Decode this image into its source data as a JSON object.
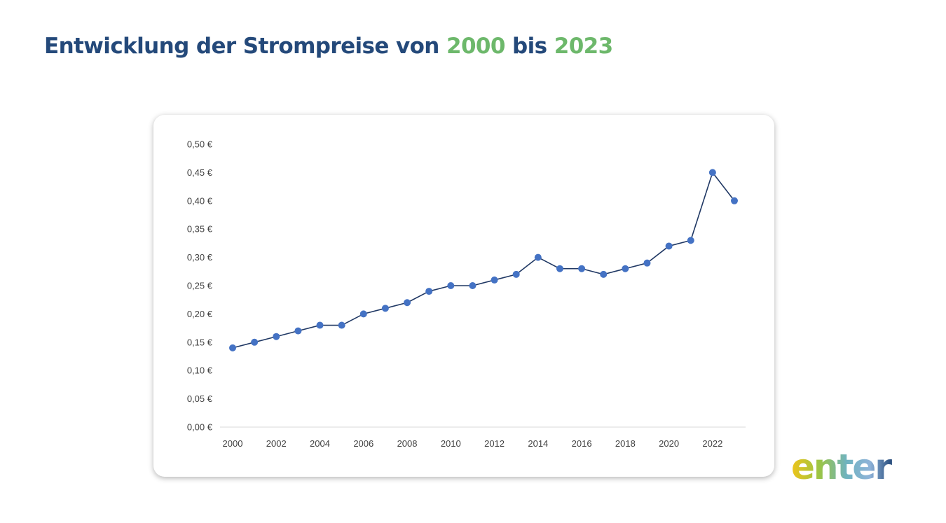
{
  "title": {
    "part1": "Entwicklung der Strompreise von ",
    "year_start": "2000",
    "part2": " bis ",
    "year_end": "2023"
  },
  "brand": {
    "logo_text": "enter",
    "title_color": "#24497a",
    "accent_color": "#6db86b"
  },
  "chart_data": {
    "type": "line",
    "title": "",
    "xlabel": "",
    "ylabel": "",
    "x": [
      2000,
      2001,
      2002,
      2003,
      2004,
      2005,
      2006,
      2007,
      2008,
      2009,
      2010,
      2011,
      2012,
      2013,
      2014,
      2015,
      2016,
      2017,
      2018,
      2019,
      2020,
      2021,
      2022,
      2023
    ],
    "series": [
      {
        "name": "Strompreis",
        "color": "#4472c4",
        "line_color": "#203864",
        "values": [
          0.14,
          0.15,
          0.16,
          0.17,
          0.18,
          0.18,
          0.2,
          0.21,
          0.22,
          0.24,
          0.25,
          0.25,
          0.26,
          0.27,
          0.3,
          0.28,
          0.28,
          0.27,
          0.28,
          0.29,
          0.32,
          0.33,
          0.45,
          0.4
        ]
      }
    ],
    "x_tick_labels": [
      "2000",
      "2002",
      "2004",
      "2006",
      "2008",
      "2010",
      "2012",
      "2014",
      "2016",
      "2018",
      "2020",
      "2022"
    ],
    "y_tick_labels": [
      "0,00 €",
      "0,05 €",
      "0,10 €",
      "0,15 €",
      "0,20 €",
      "0,25 €",
      "0,30 €",
      "0,35 €",
      "0,40 €",
      "0,45 €",
      "0,50 €"
    ],
    "y_ticks": [
      0,
      0.05,
      0.1,
      0.15,
      0.2,
      0.25,
      0.3,
      0.35,
      0.4,
      0.45,
      0.5
    ],
    "ylim": [
      0,
      0.5
    ],
    "xlim": [
      2000,
      2023
    ],
    "grid": false,
    "legend": "none"
  }
}
